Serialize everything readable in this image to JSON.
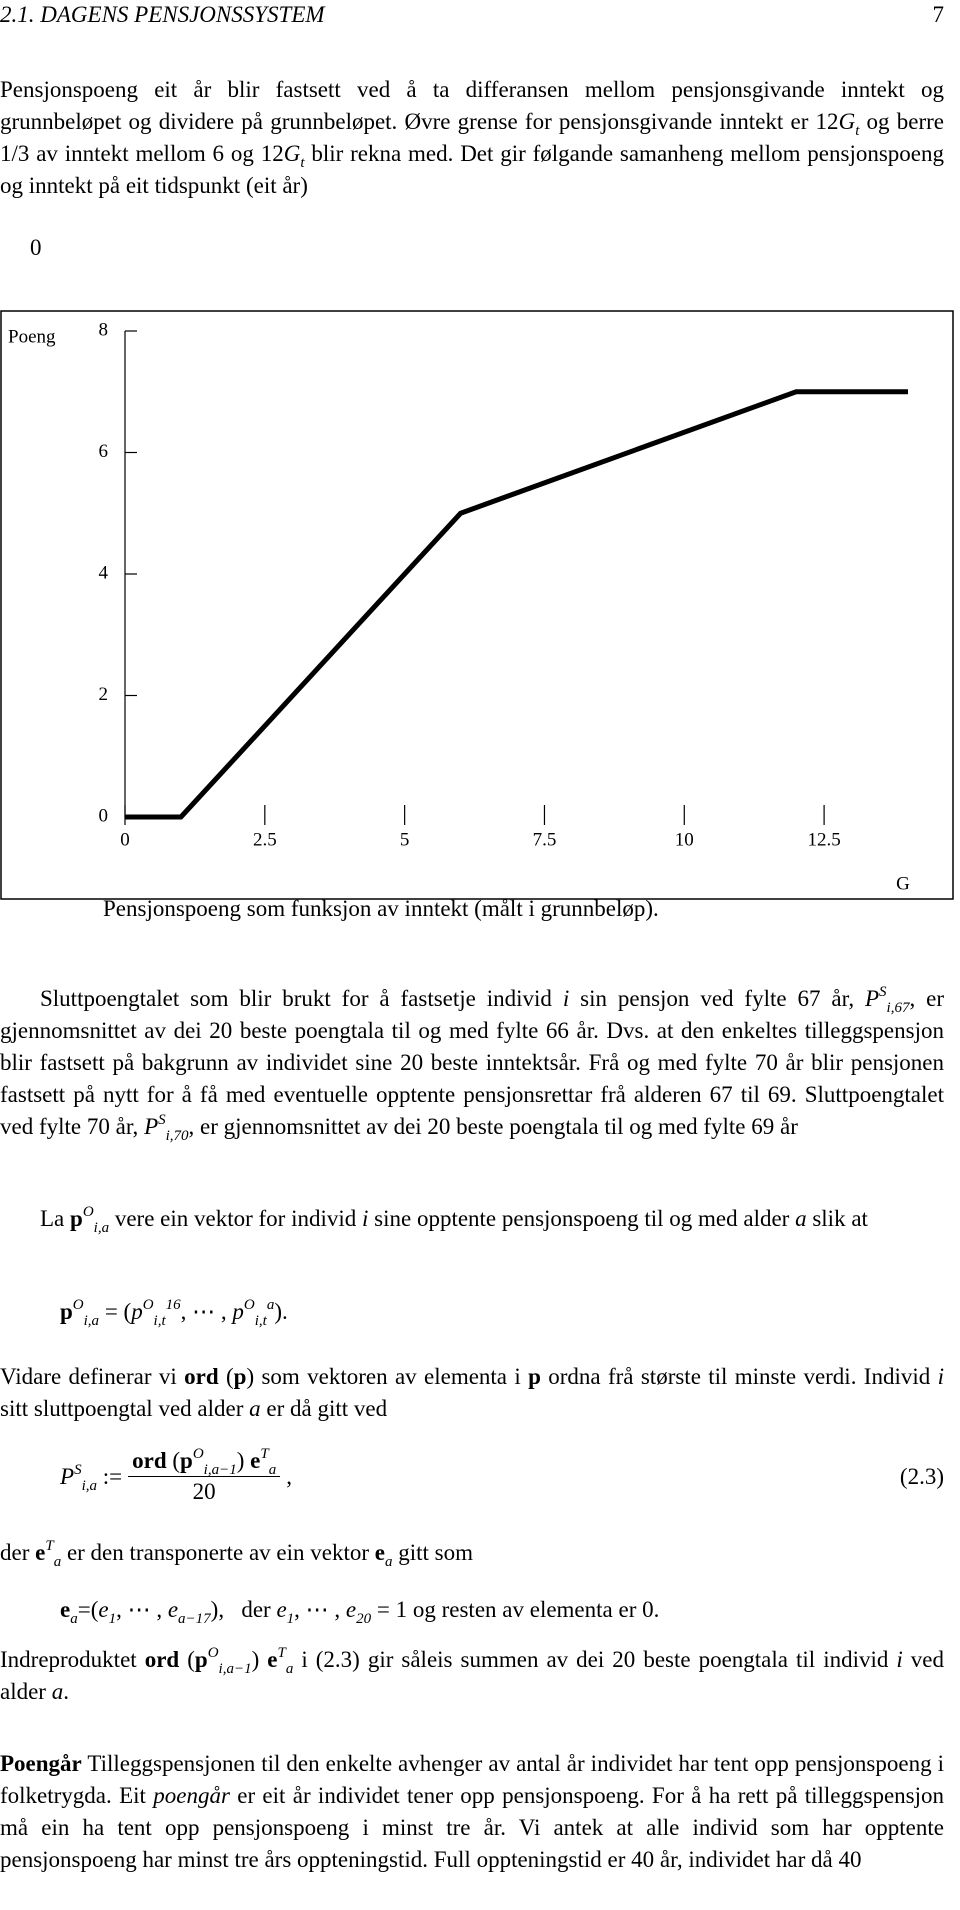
{
  "header": {
    "section": "2.1. DAGENS PENSJONSSYSTEM",
    "page": "7"
  },
  "paragraphs": {
    "p1": [
      "Pensjonspoeng eit år blir fastsett ved å ta differansen mellom pensjonsgivande inntekt og grunnbeløpet og dividere på grunnbeløpet. Øvre grense for pensjonsgivande inntekt er 12",
      {
        "i": "G"
      },
      {
        "sub": "t"
      },
      " og berre 1/3 av inntekt mellom 6 og 12",
      {
        "i": "G"
      },
      {
        "sub": "t"
      },
      " blir rekna med. Det gir følgande samanheng mellom pensjonspoeng og inntekt på eit tidspunkt (eit år)"
    ],
    "stray": [
      "0"
    ],
    "p2": [
      "Sluttpoengtalet som blir brukt for å fastsetje individ ",
      {
        "i": "i"
      },
      " sin pensjon ved fylte 67 år, ",
      {
        "i": "P"
      },
      {
        "sup": "S"
      },
      {
        "sub": "i,67"
      },
      ", er gjennomsnittet av dei 20 beste poengtala til og med fylte 66 år. Dvs. at den enkeltes tilleggspensjon blir fastsett på bakgrunn av individet sine 20 beste inntektsår. Frå og med fylte 70 år blir pensjonen fastsett på nytt for å få med eventuelle opptente pensjonsrettar frå alderen 67 til 69. Sluttpoengtalet ved fylte 70 år, ",
      {
        "i": "P"
      },
      {
        "sup": "S"
      },
      {
        "sub": "i,70"
      },
      ", er gjennomsnittet av dei 20 beste poengtala til og med fylte 69 år"
    ],
    "p3": [
      "La ",
      {
        "b": "p"
      },
      {
        "sup": "O"
      },
      {
        "sub": "i,a"
      },
      " vere ein vektor for individ ",
      {
        "i": "i"
      },
      " sine opptente pensjonspoeng til og med alder ",
      {
        "i": "a"
      },
      " slik at"
    ],
    "eq1": [
      {
        "b": "p"
      },
      {
        "sup": "O"
      },
      {
        "sub": "i,a"
      },
      " = (",
      {
        "i": "p"
      },
      {
        "sup": "O"
      },
      {
        "sub": "i,t"
      },
      {
        "sup": "16"
      },
      ", ⋯ , ",
      {
        "i": "p"
      },
      {
        "sup": "O"
      },
      {
        "sub": "i,t"
      },
      {
        "sup": "a"
      },
      ")."
    ],
    "p4": [
      "Vidare definerar vi ",
      {
        "b": "ord"
      },
      " (",
      {
        "b": "p"
      },
      ") som vektoren av elementa i ",
      {
        "b": "p"
      },
      " ordna frå største til minste verdi. Individ ",
      {
        "i": "i"
      },
      " sitt sluttpoengtal ved alder ",
      {
        "i": "a"
      },
      " er då gitt ved"
    ],
    "p5": [
      "der ",
      {
        "b": "e"
      },
      {
        "sup": "T"
      },
      {
        "sub": "a"
      },
      " er den transponerte av ein vektor ",
      {
        "b": "e"
      },
      {
        "sub": "a"
      },
      " gitt som"
    ],
    "eq3": [
      {
        "b": "e"
      },
      {
        "sub": "a"
      },
      "=(",
      {
        "i": "e"
      },
      {
        "sub": "1"
      },
      ", ⋯ , ",
      {
        "i": "e"
      },
      {
        "sub": "a−17"
      },
      "),   der ",
      {
        "i": "e"
      },
      {
        "sub": "1"
      },
      ", ⋯ , ",
      {
        "i": "e"
      },
      {
        "sub": "20"
      },
      " = 1 og resten av elementa er 0."
    ],
    "p6": [
      "Indreproduktet ",
      {
        "b": "ord"
      },
      " (",
      {
        "b": "p"
      },
      {
        "sup": "O"
      },
      {
        "sub": "i,a−1"
      },
      ") ",
      {
        "b": "e"
      },
      {
        "sup": "T"
      },
      {
        "sub": "a"
      },
      " i (2.3) gir såleis summen av dei 20 beste poengtala til individ ",
      {
        "i": "i"
      },
      " ved alder ",
      {
        "i": "a"
      },
      "."
    ],
    "p7": [
      {
        "b": "Poengår"
      },
      " Tilleggspensjonen til den enkelte avhenger av antal år individet har tent opp pensjonspoeng i folketrygda. Eit ",
      {
        "i": "poengår"
      },
      " er eit år individet tener opp pensjonspoeng. For å ha rett på tilleggspensjon må ein ha tent opp pensjonspoeng i minst tre år. Vi antek at alle individ som har opptente pensjonspoeng har minst tre års oppteningstid. Full oppteningstid er 40 år, individet har då 40"
    ]
  },
  "equation_2_3": {
    "lhs": [
      {
        "i": "P"
      },
      {
        "sup": "S"
      },
      {
        "sub": "i,a"
      },
      " :="
    ],
    "numerator": [
      {
        "b": "ord"
      },
      " (",
      {
        "b": "p"
      },
      {
        "sup": "O"
      },
      {
        "sub": "i,a−1"
      },
      ") ",
      {
        "b": "e"
      },
      {
        "sup": "T"
      },
      {
        "sub": "a"
      }
    ],
    "denominator": [
      "20"
    ],
    "tail": [
      ","
    ],
    "number": [
      "(2.3)"
    ]
  },
  "chart_data": {
    "type": "line",
    "y_label": "Poeng",
    "x_label": "G",
    "caption": "Pensjonspoeng som funksjon av inntekt (målt i grunnbeløp).",
    "x": [
      0,
      1,
      6,
      12,
      14
    ],
    "series": [
      {
        "color": "#000000",
        "values": [
          0,
          0,
          5,
          7,
          7
        ]
      }
    ],
    "xlim": [
      0,
      14
    ],
    "ylim": [
      0,
      8
    ],
    "xticks": [
      0,
      2.5,
      5,
      7.5,
      10,
      12.5
    ],
    "yticks": [
      0,
      2,
      4,
      6,
      8
    ]
  }
}
